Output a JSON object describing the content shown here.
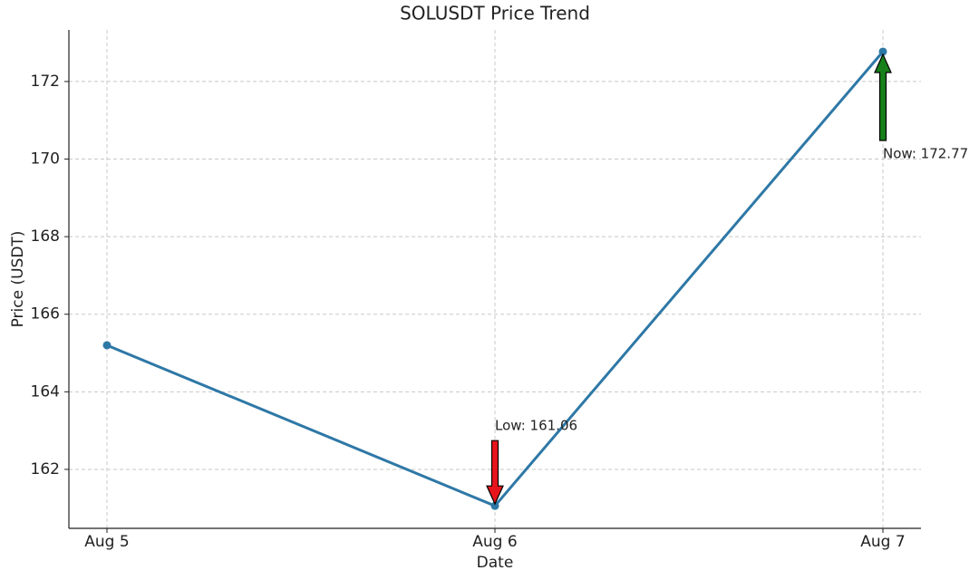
{
  "chart_data": {
    "type": "line",
    "title": "SOLUSDT Price Trend",
    "x_label": "Date",
    "y_label": "Price (USDT)",
    "categories": [
      "Aug 5",
      "Aug 6",
      "Aug 7"
    ],
    "values": [
      165.2,
      161.06,
      172.77
    ],
    "color": "#2e78a6",
    "ylim": [
      160.48,
      173.33
    ],
    "yticks": [
      162,
      164,
      166,
      168,
      170,
      172
    ],
    "grid": true,
    "annotations": [
      {
        "text": "Low: 161.06",
        "x": "Aug 6",
        "y": 161.06,
        "color": "#e8141c"
      },
      {
        "text": "Now: 172.77",
        "x": "Aug 7",
        "y": 172.77,
        "color": "#17801a"
      }
    ]
  }
}
